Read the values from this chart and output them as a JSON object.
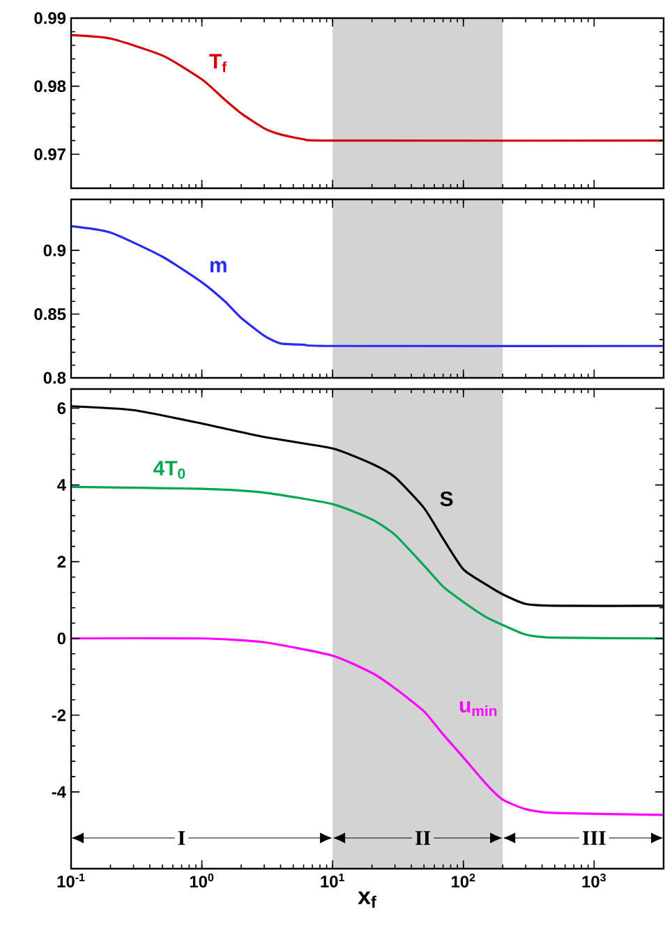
{
  "chart_data": [
    {
      "type": "line",
      "xlim": [
        0.1,
        3400
      ],
      "ylim": [
        0.965,
        0.99
      ],
      "log": "x",
      "tick_labels": "y",
      "xticks": [
        {
          "value": 0.1,
          "label": null
        },
        {
          "value": 1,
          "label": null
        },
        {
          "value": 10,
          "label": null
        },
        {
          "value": 100,
          "label": null
        },
        {
          "value": 1000,
          "label": null
        }
      ],
      "yticks": [
        0.97,
        0.98,
        0.99
      ],
      "bands": [
        {
          "axis": "x",
          "from": 10,
          "to": 200,
          "color": "#d3d3d3"
        }
      ],
      "series": [
        {
          "name": "T$_{f}$",
          "color": "#d40000",
          "x": [
            0.1,
            0.2,
            0.5,
            1,
            1.5,
            2,
            3,
            4,
            6,
            10,
            3400
          ],
          "values": [
            0.9875,
            0.987,
            0.9845,
            0.981,
            0.978,
            0.976,
            0.9738,
            0.9729,
            0.9722,
            0.972,
            0.972
          ]
        }
      ]
    },
    {
      "type": "line",
      "xlim": [
        0.1,
        3400
      ],
      "ylim": [
        0.8,
        0.94
      ],
      "log": "x",
      "tick_labels": "y",
      "xticks": [
        {
          "value": 0.1,
          "label": null
        },
        {
          "value": 1,
          "label": null
        },
        {
          "value": 10,
          "label": null
        },
        {
          "value": 100,
          "label": null
        },
        {
          "value": 1000,
          "label": null
        }
      ],
      "yticks": [
        0.8,
        0.85,
        0.9
      ],
      "bands": [
        {
          "axis": "x",
          "from": 10,
          "to": 200,
          "color": "#d3d3d3"
        }
      ],
      "series": [
        {
          "name": "m",
          "color": "#2b2bf0",
          "x": [
            0.1,
            0.2,
            0.5,
            1,
            1.5,
            2,
            3,
            4,
            6,
            10,
            3400
          ],
          "values": [
            0.919,
            0.914,
            0.895,
            0.875,
            0.86,
            0.847,
            0.833,
            0.827,
            0.826,
            0.825,
            0.825
          ]
        }
      ]
    },
    {
      "type": "line",
      "xlim": [
        0.1,
        3400
      ],
      "ylim": [
        -6,
        6.5
      ],
      "log": "x",
      "xlabel": "x$_{f}$",
      "xticks": [
        {
          "value": 0.1,
          "label": "10$^{-1}$"
        },
        {
          "value": 1,
          "label": "10$^{0}$"
        },
        {
          "value": 10,
          "label": "10$^{1}$"
        },
        {
          "value": 100,
          "label": "10$^{2}$"
        },
        {
          "value": 1000,
          "label": "10$^{3}$"
        }
      ],
      "yticks": [
        -4,
        -2,
        0,
        2,
        4,
        6
      ],
      "bands": [
        {
          "axis": "x",
          "from": 10,
          "to": 200,
          "color": "#d3d3d3"
        }
      ],
      "annotations": [
        {
          "text": "I",
          "x": 0.7,
          "y": -5.2
        },
        {
          "text": "II",
          "x": 49,
          "y": -5.2
        },
        {
          "text": "III",
          "x": 1000,
          "y": -5.2
        }
      ],
      "series": [
        {
          "name": "S",
          "color": "#000000",
          "x": [
            0.1,
            0.3,
            1,
            3,
            10,
            20,
            30,
            50,
            70,
            100,
            150,
            200,
            300,
            500,
            3400
          ],
          "values": [
            6.05,
            5.95,
            5.6,
            5.25,
            4.95,
            4.55,
            4.2,
            3.4,
            2.6,
            1.8,
            1.4,
            1.15,
            0.9,
            0.85,
            0.85
          ]
        },
        {
          "name": "4T$_{0}$",
          "color": "#00a651",
          "x": [
            0.1,
            1,
            3,
            10,
            20,
            30,
            50,
            70,
            100,
            150,
            200,
            300,
            500,
            3400
          ],
          "values": [
            3.95,
            3.9,
            3.8,
            3.5,
            3.1,
            2.7,
            1.9,
            1.35,
            0.95,
            0.55,
            0.35,
            0.1,
            0.02,
            0
          ]
        },
        {
          "name": "u$_{min}$",
          "color": "#ff00ff",
          "x": [
            0.1,
            1,
            3,
            10,
            20,
            30,
            50,
            70,
            100,
            150,
            200,
            300,
            500,
            3400
          ],
          "values": [
            0,
            0,
            -0.1,
            -0.45,
            -0.9,
            -1.3,
            -1.9,
            -2.5,
            -3.1,
            -3.8,
            -4.2,
            -4.45,
            -4.55,
            -4.6
          ]
        }
      ]
    }
  ]
}
